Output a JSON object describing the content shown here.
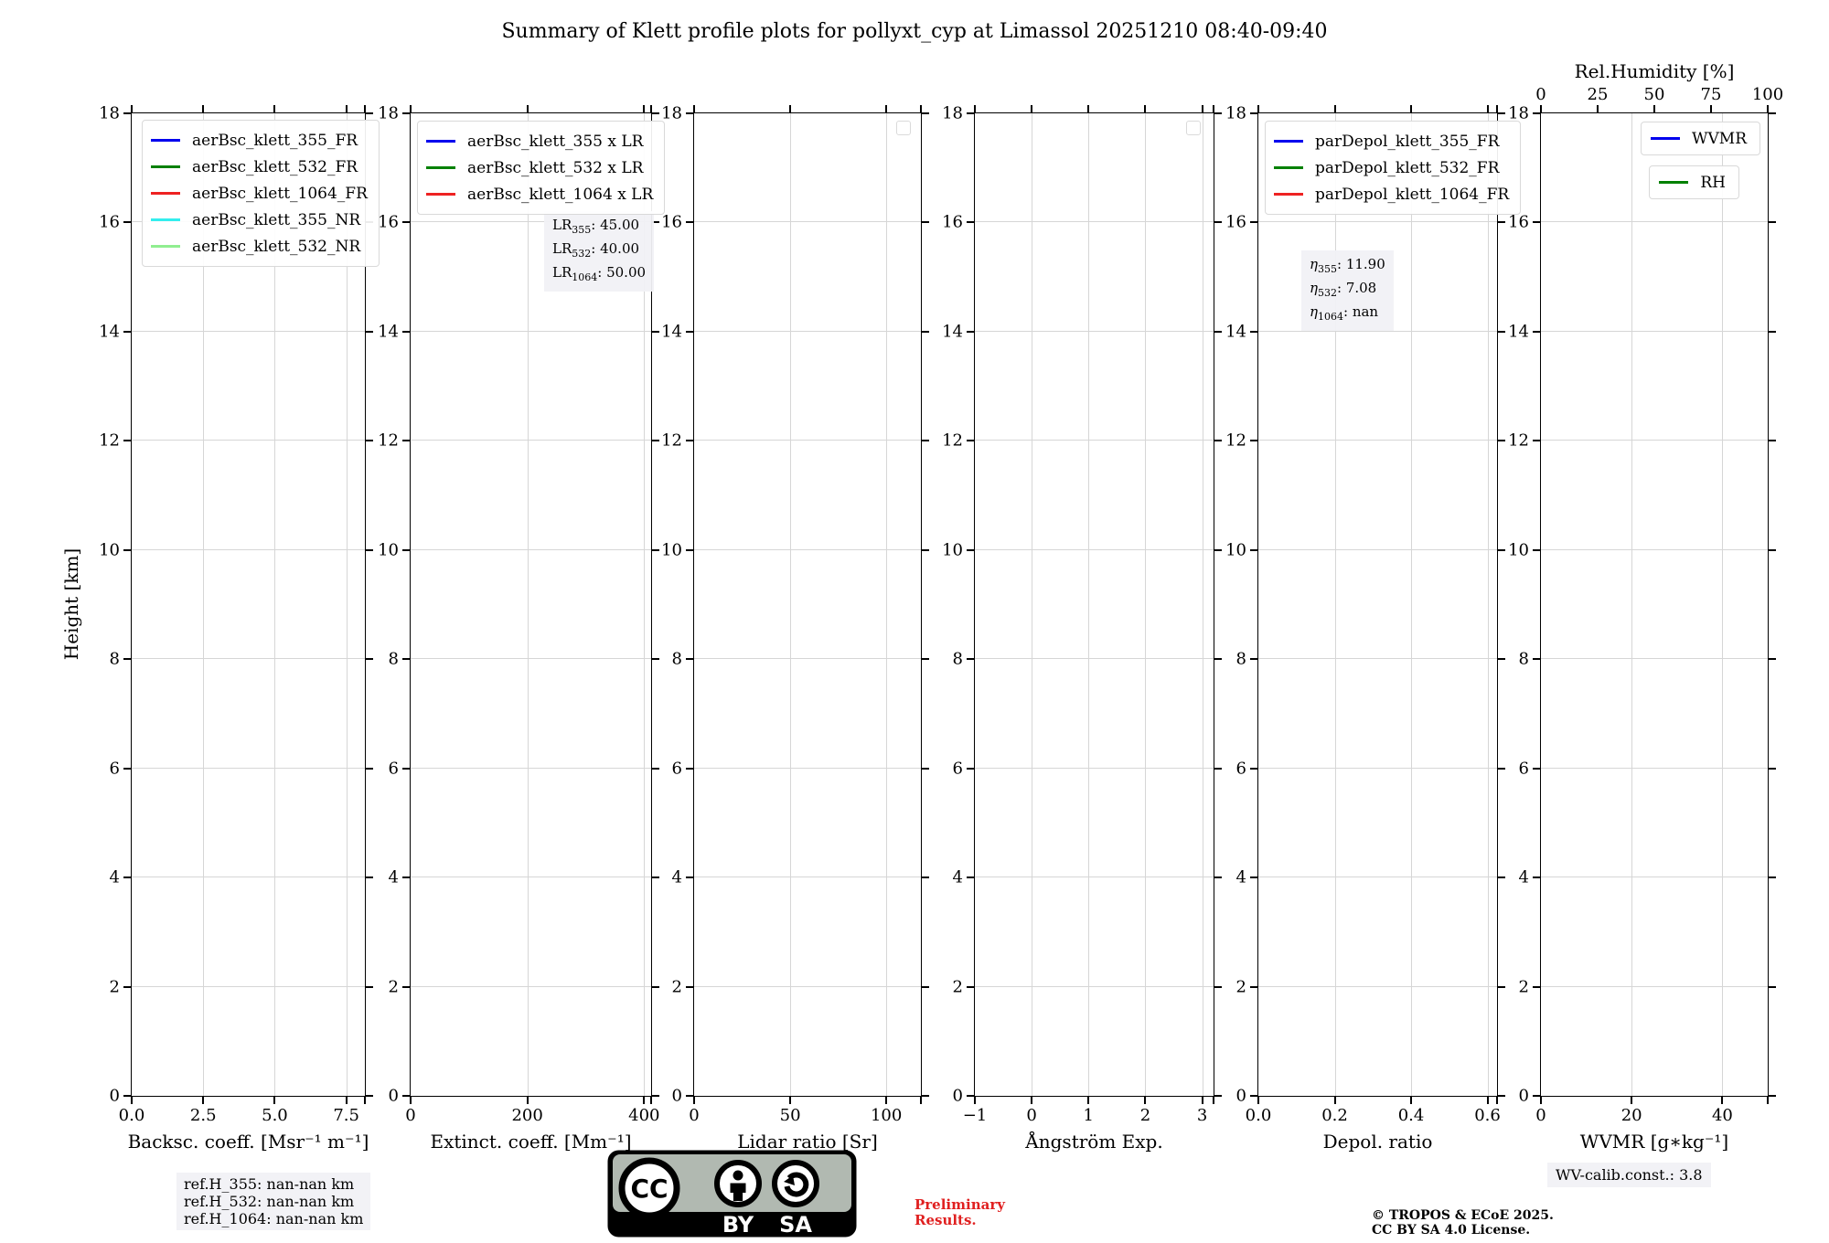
{
  "title": "Summary of Klett profile plots for pollyxt_cyp at Limassol 20251210 08:40-09:40",
  "ylabel": "Height [km]",
  "colors": {
    "blue": "#0000ee",
    "green": "#008000",
    "red": "#ee2222",
    "cyan": "#33eeee",
    "lightgreen": "#90ee90",
    "grid": "#d6d6d6",
    "annotation_bg": "#f1f1f6",
    "preliminary_red": "#e02020"
  },
  "chart_data": [
    {
      "id": "backscatter",
      "type": "line",
      "xlabel": "Backsc. coeff. [Msr⁻¹ m⁻¹]",
      "xlim": [
        0,
        8.15
      ],
      "xticks": [
        0,
        2.5,
        5,
        7.5
      ],
      "xtick_labels": [
        "0.0",
        "2.5",
        "5.0",
        "7.5"
      ],
      "ylim": [
        0,
        18
      ],
      "yticks": [
        0,
        2,
        4,
        6,
        8,
        10,
        12,
        14,
        16,
        18
      ],
      "grid": true,
      "legend": [
        {
          "label": "aerBsc_klett_355_FR",
          "color": "#0000ee"
        },
        {
          "label": "aerBsc_klett_532_FR",
          "color": "#008000"
        },
        {
          "label": "aerBsc_klett_1064_FR",
          "color": "#ee2222"
        },
        {
          "label": "aerBsc_klett_355_NR",
          "color": "#33eeee"
        },
        {
          "label": "aerBsc_klett_532_NR",
          "color": "#90ee90"
        }
      ],
      "series": []
    },
    {
      "id": "extinction",
      "type": "line",
      "xlabel": "Extinct. coeff. [Mm⁻¹]",
      "xlim": [
        0,
        412
      ],
      "xticks": [
        0,
        200,
        400
      ],
      "xtick_labels": [
        "0",
        "200",
        "400"
      ],
      "ylim": [
        0,
        18
      ],
      "yticks": [
        0,
        2,
        4,
        6,
        8,
        10,
        12,
        14,
        16,
        18
      ],
      "grid": true,
      "legend": [
        {
          "label": "aerBsc_klett_355 x LR",
          "color": "#0000ee"
        },
        {
          "label": "aerBsc_klett_532 x LR",
          "color": "#008000"
        },
        {
          "label": "aerBsc_klett_1064 x LR",
          "color": "#ee2222"
        }
      ],
      "annotation": {
        "lines": [
          {
            "sym": "LR",
            "sub": "355",
            "rest": ": 45.00",
            "italic": false
          },
          {
            "sym": "LR",
            "sub": "532",
            "rest": ": 40.00",
            "italic": false
          },
          {
            "sym": "LR",
            "sub": "1064",
            "rest": ": 50.00",
            "italic": false
          }
        ]
      },
      "series": []
    },
    {
      "id": "lidar_ratio",
      "type": "line",
      "xlabel": "Lidar ratio [Sr]",
      "xlim": [
        0,
        118
      ],
      "xticks": [
        0,
        50,
        100
      ],
      "xtick_labels": [
        "0",
        "50",
        "100"
      ],
      "ylim": [
        0,
        18
      ],
      "yticks": [
        0,
        2,
        4,
        6,
        8,
        10,
        12,
        14,
        16,
        18
      ],
      "grid": true,
      "legend_empty": true,
      "series": []
    },
    {
      "id": "angstrom",
      "type": "line",
      "xlabel": "Ångström Exp.",
      "xlim": [
        -1,
        3.2
      ],
      "xticks": [
        -1,
        0,
        1,
        2,
        3
      ],
      "xtick_labels": [
        "−1",
        "0",
        "1",
        "2",
        "3"
      ],
      "ylim": [
        0,
        18
      ],
      "yticks": [
        0,
        2,
        4,
        6,
        8,
        10,
        12,
        14,
        16,
        18
      ],
      "grid": true,
      "legend_empty": true,
      "series": []
    },
    {
      "id": "depol",
      "type": "line",
      "xlabel": "Depol. ratio",
      "xlim": [
        0,
        0.625
      ],
      "xticks": [
        0,
        0.2,
        0.4,
        0.6
      ],
      "xtick_labels": [
        "0.0",
        "0.2",
        "0.4",
        "0.6"
      ],
      "ylim": [
        0,
        18
      ],
      "yticks": [
        0,
        2,
        4,
        6,
        8,
        10,
        12,
        14,
        16,
        18
      ],
      "grid": true,
      "legend": [
        {
          "label": "parDepol_klett_355_FR",
          "color": "#0000ee"
        },
        {
          "label": "parDepol_klett_532_FR",
          "color": "#008000"
        },
        {
          "label": "parDepol_klett_1064_FR",
          "color": "#ee2222"
        }
      ],
      "annotation": {
        "lines": [
          {
            "sym": "η",
            "sub": "355",
            "rest": ": 11.90",
            "italic": true
          },
          {
            "sym": "η",
            "sub": "532",
            "rest": ": 7.08",
            "italic": true
          },
          {
            "sym": "η",
            "sub": "1064",
            "rest": ": nan",
            "italic": true
          }
        ]
      },
      "series": []
    },
    {
      "id": "wvmr",
      "type": "line",
      "xlabel": "WVMR [g∗kg⁻¹]",
      "xlim": [
        0,
        50
      ],
      "xticks": [
        0,
        20,
        40
      ],
      "xtick_labels": [
        "0",
        "20",
        "40"
      ],
      "ylim": [
        0,
        18
      ],
      "yticks": [
        0,
        2,
        4,
        6,
        8,
        10,
        12,
        14,
        16,
        18
      ],
      "grid": true,
      "top_axis": {
        "label": "Rel.Humidity [%]",
        "lim": [
          0,
          100
        ],
        "ticks": [
          0,
          25,
          50,
          75,
          100
        ],
        "tick_labels": [
          "0",
          "25",
          "50",
          "75",
          "100"
        ]
      },
      "legend": [
        {
          "label": "WVMR",
          "color": "#0000ee"
        }
      ],
      "legend2": [
        {
          "label": "RH",
          "color": "#008000"
        }
      ],
      "series": []
    }
  ],
  "footer": {
    "ref_heights": [
      "ref.H_355: nan-nan km",
      "ref.H_532: nan-nan km",
      "ref.H_1064: nan-nan km"
    ],
    "wv_calib": "WV-calib.const.: 3.8",
    "preliminary": [
      "Preliminary",
      "Results."
    ],
    "copyright": [
      "© TROPOS & ECoE 2025.",
      "CC BY SA 4.0 License."
    ],
    "license_badge": {
      "cc": "CC",
      "by": "BY",
      "sa": "SA"
    }
  }
}
